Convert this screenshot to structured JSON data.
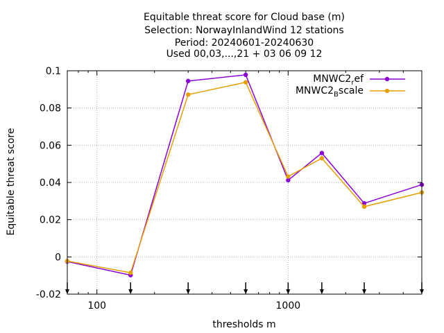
{
  "chart_data": {
    "type": "line",
    "title_lines": [
      "Equitable threat score  for Cloud base (m)",
      "Selection: NorwayInlandWind     12 stations",
      "Period: 20240601-20240630",
      "Used 00,03,...,21 + 03 06 09 12"
    ],
    "xlabel": "thresholds m",
    "ylabel": "Equitable threat score",
    "x_scale": "log",
    "xlim": [
      70,
      5000
    ],
    "ylim": [
      -0.02,
      0.1
    ],
    "x_ticks": [
      {
        "value": 100,
        "label": "100"
      },
      {
        "value": 1000,
        "label": "1000"
      }
    ],
    "y_ticks": [
      {
        "value": -0.02,
        "label": "-0.02"
      },
      {
        "value": 0,
        "label": "0"
      },
      {
        "value": 0.02,
        "label": "0.02"
      },
      {
        "value": 0.04,
        "label": "0.04"
      },
      {
        "value": 0.06,
        "label": "0.06"
      },
      {
        "value": 0.08,
        "label": "0.08"
      },
      {
        "value": 0.1,
        "label": "0.1"
      }
    ],
    "grid": true,
    "legend_position": "top-right",
    "threshold_markers": [
      70,
      150,
      300,
      600,
      1000,
      1500,
      2500,
      5000
    ],
    "x": [
      70,
      150,
      300,
      600,
      1000,
      1500,
      2500,
      5000
    ],
    "series": [
      {
        "legend_main": "MNWC2",
        "legend_sub": "r",
        "legend_tail": "ef",
        "color": "#8b00d6",
        "values": [
          -0.0025,
          -0.0098,
          0.0945,
          0.0978,
          0.0412,
          0.0558,
          0.0288,
          0.0388
        ]
      },
      {
        "legend_main": "MNWC2",
        "legend_sub": "B",
        "legend_tail": "scale",
        "color": "#e69f00",
        "values": [
          -0.0022,
          -0.0085,
          0.0872,
          0.0938,
          0.0432,
          0.053,
          0.027,
          0.0346
        ]
      }
    ]
  }
}
